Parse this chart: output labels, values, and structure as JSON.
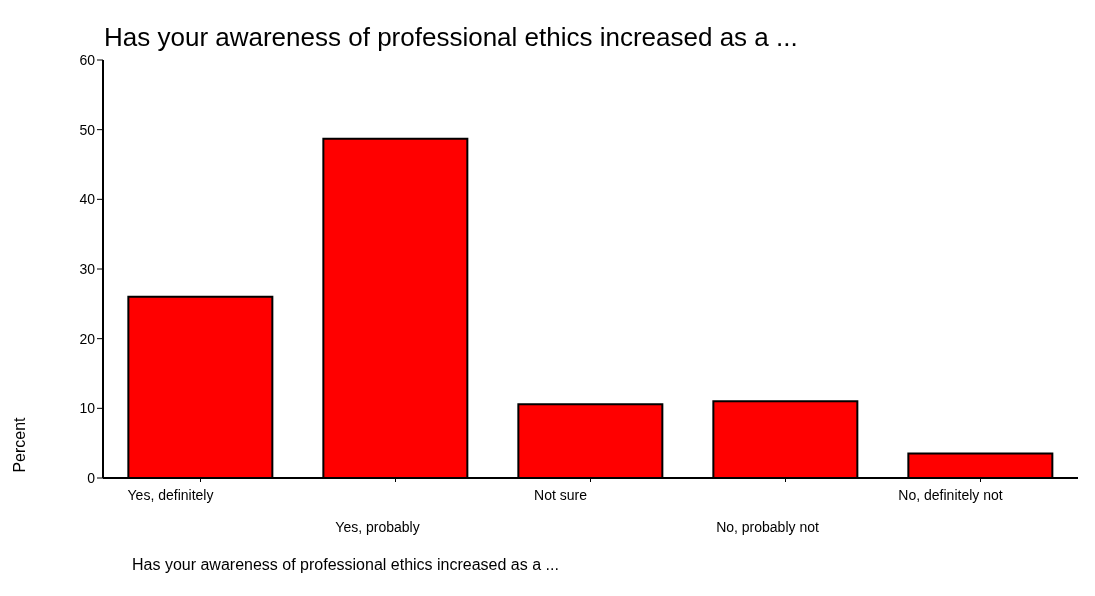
{
  "chart_data": {
    "type": "bar",
    "title": "Has your awareness of professional ethics increased as a ...",
    "xlabel": "Has your awareness of professional ethics increased as a ...",
    "ylabel": "Percent",
    "categories": [
      "Yes, definitely",
      "Yes, probably",
      "Not sure",
      "No, probably not",
      "No, definitely not"
    ],
    "values": [
      26.0,
      48.7,
      10.6,
      11.0,
      3.5
    ],
    "color": "#ff0000",
    "ylim": [
      0,
      60
    ],
    "yticks": [
      0,
      10,
      20,
      30,
      40,
      50,
      60
    ]
  }
}
